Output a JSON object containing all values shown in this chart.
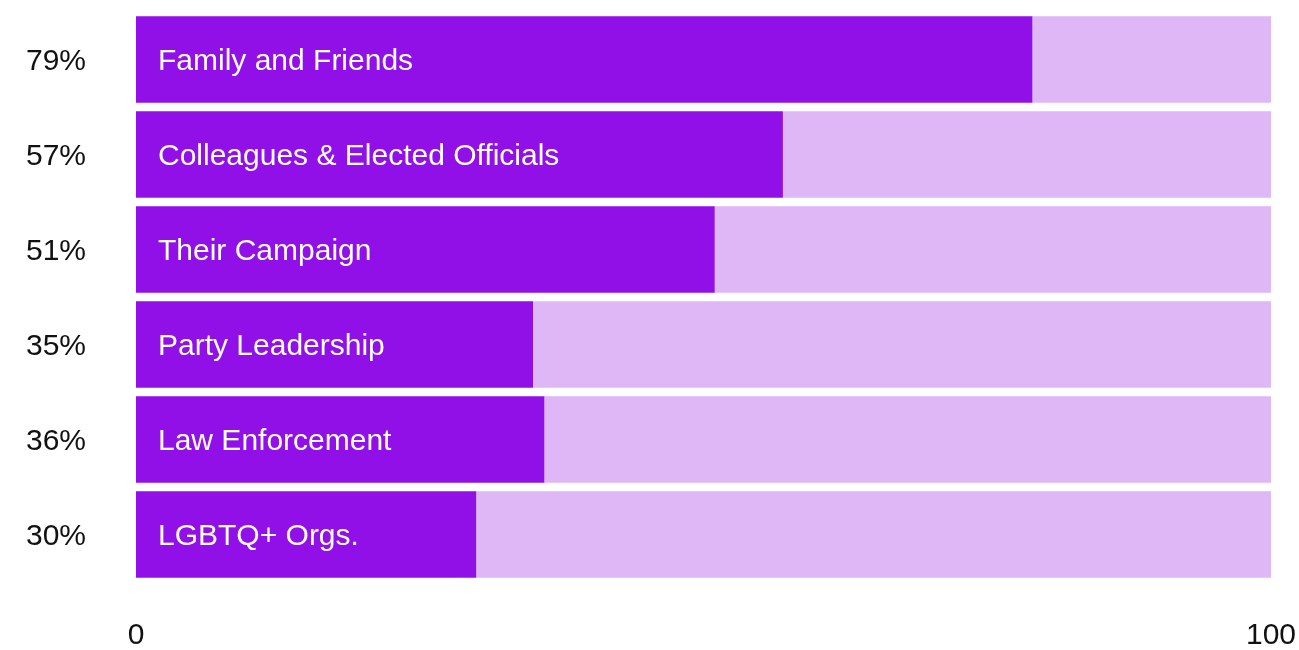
{
  "chart_data": {
    "type": "bar",
    "orientation": "horizontal",
    "stacked": true,
    "categories": [
      "Family and Friends",
      "Colleagues & Elected Officials",
      "Their Campaign",
      "Party Leadership",
      "Law Enforcement",
      "LGBTQ+ Orgs."
    ],
    "series": [
      {
        "color": "#9210e8",
        "values": [
          79,
          57,
          51,
          35,
          36,
          30
        ],
        "value_labels": [
          "79%",
          "57%",
          "51%",
          "35%",
          "36%",
          "30%"
        ]
      },
      {
        "color": "#dfb6f6",
        "values": [
          21,
          43,
          49,
          65,
          64,
          70
        ]
      }
    ],
    "xlim": [
      0,
      100
    ],
    "xticks": [
      0,
      100
    ],
    "grid": false
  }
}
